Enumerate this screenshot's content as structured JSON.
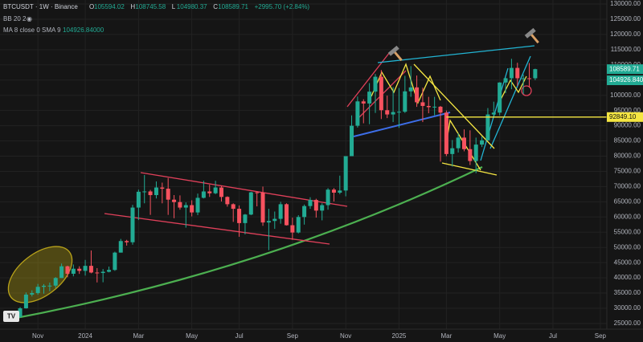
{
  "chart_data": {
    "type": "candlestick",
    "header": {
      "symbol": "BTCUSDT · 1W · Binance",
      "ohlc": [
        {
          "key": "O",
          "text": "105594.02"
        },
        {
          "key": "H",
          "text": "108745.58"
        },
        {
          "key": "L",
          "text": "104980.37"
        },
        {
          "key": "C",
          "text": "108589.71"
        }
      ],
      "change": "+2995.70 (+2.84%)"
    },
    "indicators": [
      {
        "name": "BB 20 2"
      },
      {
        "name": "MA 8 close 0 SMA 9",
        "value": "104926.84000"
      }
    ],
    "up_color": "#22ab94",
    "down_color": "#f7525f",
    "open": [
      27970,
      27950,
      27150,
      29990,
      34500,
      35000,
      37050,
      37400,
      37450,
      39950,
      43800,
      41350,
      43000,
      42300,
      43950,
      41750,
      41600,
      42000,
      42600,
      48300,
      52100,
      51700,
      63100,
      68300,
      68400,
      67200,
      69700,
      69300,
      65700,
      64900,
      63100,
      63900,
      61500,
      66300,
      68400,
      67800,
      69700,
      66600,
      64200,
      62700,
      58000,
      60800,
      68100,
      68000,
      58200,
      58700,
      59400,
      64200,
      57300,
      54900,
      60000,
      63600,
      65600,
      62100,
      63900,
      69000,
      68000,
      68700,
      80000,
      90000,
      98000,
      97300,
      101200,
      106100,
      95100,
      93700,
      94500,
      94600,
      101300,
      102600,
      97700,
      96500,
      96100,
      96250,
      94300,
      80700,
      82600,
      86100,
      82300,
      78400,
      83800,
      85200,
      93700,
      94300,
      104200,
      105600,
      109000,
      105600,
      105600,
      105594.02
    ],
    "high": [
      28600,
      28000,
      30400,
      35200,
      35900,
      38000,
      37950,
      38450,
      40250,
      44700,
      44000,
      44400,
      43800,
      45900,
      49000,
      43200,
      42900,
      43700,
      48600,
      52800,
      52500,
      64000,
      69000,
      73800,
      68900,
      71700,
      71300,
      72800,
      67200,
      67100,
      64800,
      65500,
      67700,
      71900,
      70600,
      71900,
      70200,
      66800,
      64500,
      63800,
      61000,
      68300,
      68500,
      70000,
      62700,
      61800,
      65000,
      64500,
      59800,
      60600,
      64100,
      66500,
      66000,
      64500,
      69500,
      69500,
      73600,
      80000,
      93400,
      99600,
      98700,
      104000,
      107000,
      108300,
      99900,
      102700,
      102400,
      106400,
      109600,
      106500,
      102500,
      99500,
      99500,
      96500,
      95000,
      85300,
      87500,
      88800,
      88500,
      86100,
      86500,
      95800,
      97900,
      104300,
      105800,
      112000,
      110700,
      106800,
      110600,
      108745.58
    ],
    "low": [
      27200,
      26550,
      26950,
      29900,
      33900,
      34500,
      34800,
      35600,
      36700,
      39950,
      40200,
      40500,
      41300,
      40750,
      41500,
      38500,
      38550,
      41800,
      42300,
      48300,
      50600,
      50900,
      59000,
      64500,
      60700,
      66100,
      64500,
      60700,
      59600,
      62400,
      56500,
      60200,
      60600,
      66100,
      66600,
      67500,
      65100,
      63400,
      58400,
      53500,
      54300,
      60600,
      63500,
      57100,
      49100,
      56100,
      57800,
      57200,
      52500,
      54600,
      57500,
      62700,
      59800,
      58900,
      62400,
      65100,
      67500,
      66800,
      80000,
      89400,
      90800,
      90500,
      94200,
      92200,
      92500,
      91200,
      89300,
      94200,
      99500,
      96200,
      91200,
      94100,
      93400,
      78200,
      80000,
      76600,
      81200,
      81600,
      77100,
      74400,
      83000,
      85100,
      92800,
      93400,
      100700,
      102000,
      103100,
      100400,
      102600,
      104980.37
    ],
    "close": [
      27950,
      27150,
      29990,
      34500,
      35000,
      37050,
      37400,
      37450,
      39950,
      43800,
      41350,
      43000,
      42300,
      43950,
      41750,
      41600,
      42000,
      42600,
      48300,
      52100,
      51700,
      63100,
      68300,
      68400,
      67200,
      69700,
      69300,
      65700,
      64900,
      63100,
      63900,
      61500,
      66300,
      68400,
      67800,
      69700,
      66600,
      64200,
      62700,
      58000,
      60800,
      68100,
      68000,
      58200,
      58700,
      59400,
      64200,
      57300,
      54900,
      60000,
      63600,
      65600,
      62100,
      63900,
      69000,
      68000,
      68700,
      80000,
      90000,
      98000,
      97300,
      101200,
      106100,
      95100,
      93700,
      94500,
      94600,
      101300,
      102600,
      97700,
      96500,
      96100,
      96250,
      94300,
      80700,
      82600,
      86100,
      82300,
      78400,
      83800,
      85200,
      93700,
      94300,
      104200,
      105600,
      109000,
      105600,
      105600,
      105594.02,
      108589.71
    ],
    "xlim": [
      -1.4,
      101.1
    ],
    "xticks": [
      {
        "value": 5,
        "label": "Nov"
      },
      {
        "value": 13,
        "label": "2024"
      },
      {
        "value": 22,
        "label": "Mar"
      },
      {
        "value": 31,
        "label": "May"
      },
      {
        "value": 39,
        "label": "Jul"
      },
      {
        "value": 48,
        "label": "Sep"
      },
      {
        "value": 57,
        "label": "Nov"
      },
      {
        "value": 66,
        "label": "2025"
      },
      {
        "value": 74,
        "label": "Mar"
      },
      {
        "value": 83,
        "label": "May"
      },
      {
        "value": 92,
        "label": "Jul"
      },
      {
        "value": 100,
        "label": "Sep"
      }
    ],
    "ylim": [
      23140,
      131320
    ],
    "yticks": [
      {
        "value": 25000,
        "label": "25000.00"
      },
      {
        "value": 30000,
        "label": "30000.00"
      },
      {
        "value": 35000,
        "label": "35000.00"
      },
      {
        "value": 40000,
        "label": "40000.00"
      },
      {
        "value": 45000,
        "label": "45000.00"
      },
      {
        "value": 50000,
        "label": "50000.00"
      },
      {
        "value": 55000,
        "label": "55000.00"
      },
      {
        "value": 60000,
        "label": "60000.00"
      },
      {
        "value": 65000,
        "label": "65000.00"
      },
      {
        "value": 70000,
        "label": "70000.00"
      },
      {
        "value": 75000,
        "label": "75000.00"
      },
      {
        "value": 80000,
        "label": "80000.00"
      },
      {
        "value": 85000,
        "label": "85000.00"
      },
      {
        "value": 90000,
        "label": "90000.00"
      },
      {
        "value": 95000,
        "label": "95000.00"
      },
      {
        "value": 100000,
        "label": "100000.00"
      },
      {
        "value": 105000,
        "label": "105000.00"
      },
      {
        "value": 110000,
        "label": "110000.00"
      },
      {
        "value": 115000,
        "label": "115000.00"
      },
      {
        "value": 120000,
        "label": "120000.00"
      },
      {
        "value": 125000,
        "label": "125000.00"
      },
      {
        "value": 130000,
        "label": "130000.00"
      }
    ],
    "grid": true,
    "horizontal_line": {
      "value": 92849.1,
      "label": "92849.10",
      "color": "#f5e642"
    },
    "price_tags": [
      {
        "value": 108589.71,
        "label": "108589.71",
        "color": "#22ab94"
      },
      {
        "value": 104926.84,
        "label": "104926.8400",
        "color": "#22ab94"
      }
    ]
  }
}
